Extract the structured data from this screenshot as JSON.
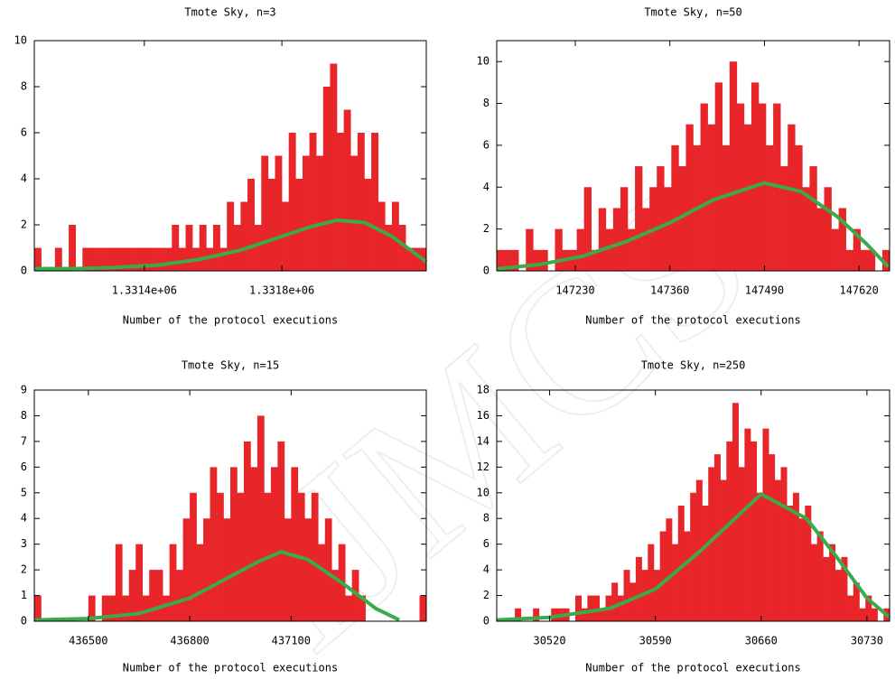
{
  "watermark": "IJMCS",
  "chart_data": [
    {
      "type": "histogram",
      "title": "Tmote Sky, n=3",
      "xlabel": "Number of the protocol executions",
      "color": "#e8262a",
      "bins": [
        1331080,
        1331100,
        1331120,
        1331140,
        1331160,
        1331180,
        1331200,
        1331220,
        1331240,
        1331260,
        1331280,
        1331300,
        1331320,
        1331340,
        1331360,
        1331380,
        1331400,
        1331420,
        1331440,
        1331460,
        1331480,
        1331500,
        1331520,
        1331540,
        1331560,
        1331580,
        1331600,
        1331620,
        1331640,
        1331660,
        1331680,
        1331700,
        1331720,
        1331740,
        1331760,
        1331780,
        1331800,
        1331820,
        1331840,
        1331860,
        1331880,
        1331900,
        1331920,
        1331940,
        1331960,
        1331980,
        1332000,
        1332020,
        1332040,
        1332060,
        1332080,
        1332100,
        1332120,
        1332140,
        1332160,
        1332180,
        1332200,
        1332220
      ],
      "counts": [
        1,
        0,
        0,
        1,
        0,
        2,
        0,
        1,
        1,
        1,
        1,
        1,
        1,
        1,
        1,
        1,
        1,
        1,
        1,
        1,
        2,
        1,
        2,
        1,
        2,
        1,
        2,
        1,
        3,
        2,
        3,
        4,
        2,
        5,
        4,
        5,
        3,
        6,
        4,
        5,
        6,
        5,
        8,
        9,
        6,
        7,
        5,
        6,
        4,
        6,
        3,
        2,
        3,
        2,
        1,
        1,
        1
      ],
      "fit": {
        "color": "#3aaa4a",
        "x": [
          1331080,
          1331200,
          1331320,
          1331440,
          1331560,
          1331680,
          1331800,
          1331880,
          1331960,
          1332040,
          1332120,
          1332220
        ],
        "values": [
          0.1,
          0.1,
          0.15,
          0.25,
          0.5,
          0.9,
          1.5,
          1.9,
          2.2,
          2.1,
          1.5,
          0.4
        ]
      },
      "xlim": [
        1331080,
        1332220
      ],
      "ylim": [
        0,
        10
      ],
      "xticks": [
        {
          "value": 1331400,
          "label": "1.3314e+06"
        },
        {
          "value": 1331800,
          "label": "1.3318e+06"
        }
      ],
      "yticks": [
        0,
        2,
        4,
        6,
        8,
        10
      ]
    },
    {
      "type": "histogram",
      "title": "Tmote Sky, n=50",
      "xlabel": "Number of the protocol executions",
      "color": "#e8262a",
      "bins": [
        147122,
        147132,
        147142,
        147152,
        147162,
        147172,
        147182,
        147192,
        147202,
        147212,
        147222,
        147232,
        147242,
        147252,
        147262,
        147272,
        147282,
        147292,
        147302,
        147312,
        147322,
        147332,
        147342,
        147352,
        147362,
        147372,
        147382,
        147392,
        147402,
        147412,
        147422,
        147432,
        147442,
        147452,
        147462,
        147472,
        147482,
        147492,
        147502,
        147512,
        147522,
        147532,
        147542,
        147552,
        147562,
        147572,
        147582,
        147592,
        147602,
        147612,
        147622,
        147632,
        147642,
        147652,
        147662
      ],
      "counts": [
        1,
        1,
        1,
        0,
        2,
        1,
        1,
        0,
        2,
        1,
        1,
        2,
        4,
        1,
        3,
        2,
        3,
        4,
        2,
        5,
        3,
        4,
        5,
        4,
        6,
        5,
        7,
        6,
        8,
        7,
        9,
        6,
        10,
        8,
        7,
        9,
        8,
        6,
        8,
        5,
        7,
        6,
        4,
        5,
        3,
        4,
        2,
        3,
        1,
        2,
        1,
        1,
        0,
        1
      ],
      "fit": {
        "color": "#3aaa4a",
        "x": [
          147122,
          147180,
          147240,
          147300,
          147360,
          147420,
          147490,
          147540,
          147590,
          147630,
          147660
        ],
        "values": [
          0.1,
          0.3,
          0.7,
          1.4,
          2.3,
          3.4,
          4.2,
          3.8,
          2.6,
          1.3,
          0.2
        ]
      },
      "xlim": [
        147122,
        147662
      ],
      "ylim": [
        0,
        11
      ],
      "xticks": [
        147230,
        147360,
        147490,
        147620
      ],
      "yticks": [
        0,
        2,
        4,
        6,
        8,
        10
      ]
    },
    {
      "type": "histogram",
      "title": "Tmote Sky, n=15",
      "xlabel": "Number of the protocol executions",
      "color": "#e8262a",
      "bins": [
        436340,
        436360,
        436380,
        436400,
        436420,
        436440,
        436460,
        436480,
        436500,
        436520,
        436540,
        436560,
        436580,
        436600,
        436620,
        436640,
        436660,
        436680,
        436700,
        436720,
        436740,
        436760,
        436780,
        436800,
        436820,
        436840,
        436860,
        436880,
        436900,
        436920,
        436940,
        436960,
        436980,
        437000,
        437020,
        437040,
        437060,
        437080,
        437100,
        437120,
        437140,
        437160,
        437180,
        437200,
        437220,
        437240,
        437260,
        437280,
        437300,
        437320,
        437340,
        437360,
        437380,
        437400,
        437420,
        437440,
        437460,
        437480,
        437500
      ],
      "counts": [
        1,
        0,
        0,
        0,
        0,
        0,
        0,
        0,
        1,
        0,
        1,
        1,
        3,
        1,
        2,
        3,
        1,
        2,
        2,
        1,
        3,
        2,
        4,
        5,
        3,
        4,
        6,
        5,
        4,
        6,
        5,
        7,
        6,
        8,
        5,
        6,
        7,
        4,
        6,
        5,
        4,
        5,
        3,
        4,
        2,
        3,
        1,
        2,
        1,
        0,
        0,
        0,
        0,
        0,
        0,
        0,
        0,
        1
      ],
      "fit": {
        "color": "#3aaa4a",
        "x": [
          436340,
          436500,
          436650,
          436800,
          436900,
          437000,
          437070,
          437150,
          437250,
          437350,
          437420
        ],
        "values": [
          0.05,
          0.1,
          0.3,
          0.9,
          1.6,
          2.3,
          2.7,
          2.4,
          1.5,
          0.5,
          0.05
        ]
      },
      "xlim": [
        436340,
        437500
      ],
      "ylim": [
        0,
        9
      ],
      "xticks": [
        436500,
        436800,
        437100
      ],
      "yticks": [
        0,
        1,
        2,
        3,
        4,
        5,
        6,
        7,
        8,
        9
      ]
    },
    {
      "type": "histogram",
      "title": "Tmote Sky, n=250",
      "xlabel": "Number of the protocol executions",
      "color": "#e8262a",
      "bins": [
        30485,
        30489,
        30493,
        30497,
        30501,
        30505,
        30509,
        30513,
        30517,
        30521,
        30525,
        30529,
        30533,
        30537,
        30541,
        30545,
        30549,
        30553,
        30557,
        30561,
        30565,
        30569,
        30573,
        30577,
        30581,
        30585,
        30589,
        30593,
        30597,
        30601,
        30605,
        30609,
        30613,
        30617,
        30621,
        30625,
        30629,
        30633,
        30637,
        30641,
        30645,
        30649,
        30653,
        30657,
        30661,
        30665,
        30669,
        30673,
        30677,
        30681,
        30685,
        30689,
        30693,
        30697,
        30701,
        30705,
        30709,
        30713,
        30717,
        30721,
        30725,
        30729,
        30733,
        30737,
        30741,
        30745
      ],
      "counts": [
        0,
        0,
        0,
        1,
        0,
        0,
        1,
        0,
        0,
        1,
        1,
        1,
        0,
        2,
        1,
        2,
        2,
        1,
        2,
        3,
        2,
        4,
        3,
        5,
        4,
        6,
        4,
        7,
        8,
        6,
        9,
        7,
        10,
        11,
        9,
        12,
        13,
        11,
        14,
        17,
        12,
        15,
        14,
        10,
        15,
        13,
        11,
        12,
        9,
        10,
        8,
        9,
        6,
        7,
        5,
        6,
        4,
        5,
        2,
        3,
        1,
        2,
        1,
        0,
        1
      ],
      "fit": {
        "color": "#3aaa4a",
        "x": [
          30485,
          30520,
          30560,
          30590,
          30620,
          30660,
          30690,
          30710,
          30730,
          30745
        ],
        "values": [
          0.1,
          0.3,
          1.0,
          2.5,
          5.5,
          9.9,
          8.0,
          5.0,
          1.8,
          0.3
        ]
      },
      "xlim": [
        30485,
        30745
      ],
      "ylim": [
        0,
        18
      ],
      "xticks": [
        30520,
        30590,
        30660,
        30730
      ],
      "yticks": [
        0,
        2,
        4,
        6,
        8,
        10,
        12,
        14,
        16,
        18
      ]
    }
  ]
}
